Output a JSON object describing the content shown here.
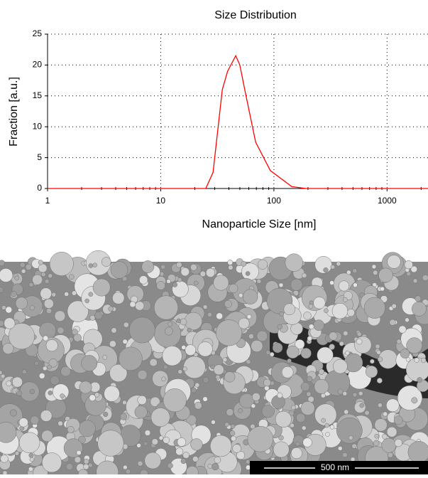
{
  "chart_data": {
    "type": "line",
    "title": "Size Distribution",
    "xlabel": "Nanoparticle Size [nm]",
    "ylabel": "Fraction [a.u.]",
    "xscale": "log",
    "xlim": [
      1,
      2300
    ],
    "ylim": [
      0,
      25
    ],
    "xticks": [
      1,
      10,
      100,
      1000
    ],
    "xminorticks": [
      2,
      3,
      4,
      5,
      6,
      7,
      8,
      9,
      20,
      30,
      40,
      50,
      60,
      70,
      80,
      90,
      200,
      300,
      400,
      500,
      600,
      700,
      800,
      900,
      2000
    ],
    "yticks": [
      0,
      5,
      10,
      15,
      20,
      25
    ],
    "grid": true,
    "series": [
      {
        "name": "Size Distribution",
        "color": "#ff0000",
        "x": [
          1,
          25,
          29,
          35,
          39,
          46,
          50,
          56,
          69,
          93,
          144,
          192,
          2300
        ],
        "values": [
          0,
          0,
          2.6,
          16,
          19,
          21.5,
          20,
          15.5,
          7.5,
          2.9,
          0.3,
          0,
          0
        ]
      }
    ]
  },
  "image": {
    "scale_bar": "500 nm"
  }
}
